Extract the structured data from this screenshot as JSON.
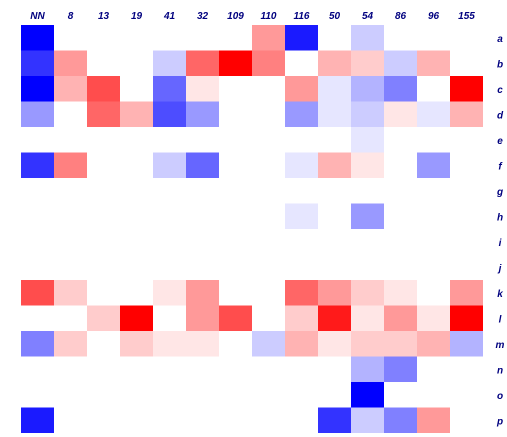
{
  "chart_data": {
    "type": "heatmap",
    "columns": [
      "NN",
      "8",
      "13",
      "19",
      "41",
      "32",
      "109",
      "110",
      "116",
      "50",
      "54",
      "86",
      "96",
      "155"
    ],
    "rows": [
      "a",
      "b",
      "c",
      "d",
      "e",
      "f",
      "g",
      "h",
      "i",
      "j",
      "k",
      "l",
      "m",
      "n",
      "o",
      "p"
    ],
    "values": [
      [
        -1,
        0,
        0,
        0,
        0,
        0,
        0,
        0.4,
        -0.9,
        0,
        -0.2,
        0,
        0,
        0
      ],
      [
        -0.8,
        0.4,
        0,
        0,
        -0.2,
        0.6,
        1,
        0.5,
        0,
        0.3,
        0.2,
        -0.2,
        0.3,
        0
      ],
      [
        -1,
        0.3,
        0.7,
        0,
        -0.6,
        0.1,
        0,
        0,
        0.4,
        -0.1,
        -0.3,
        -0.5,
        0,
        1
      ],
      [
        -0.4,
        0,
        0.6,
        0.3,
        -0.7,
        -0.4,
        0,
        0,
        -0.4,
        -0.1,
        -0.2,
        0.1,
        -0.1,
        0.3
      ],
      [
        0,
        0,
        0,
        0,
        0,
        0,
        0,
        0,
        0,
        0,
        -0.1,
        0,
        0,
        0
      ],
      [
        -0.8,
        0.5,
        0,
        0,
        -0.2,
        -0.6,
        0,
        0,
        -0.1,
        0.3,
        0.1,
        0,
        -0.4,
        0
      ],
      [
        0,
        0,
        0,
        0,
        0,
        0,
        0,
        0,
        0,
        0,
        0,
        0,
        0,
        0
      ],
      [
        0,
        0,
        0,
        0,
        0,
        0,
        0,
        0,
        -0.1,
        0,
        -0.4,
        0,
        0,
        0
      ],
      [
        0,
        0,
        0,
        0,
        0,
        0,
        0,
        0,
        0,
        0,
        0,
        0,
        0,
        0
      ],
      [
        0,
        0,
        0,
        0,
        0,
        0,
        0,
        0,
        0,
        0,
        0,
        0,
        0,
        0
      ],
      [
        0.7,
        0.2,
        0,
        0,
        0.1,
        0.4,
        0,
        0,
        0.6,
        0.4,
        0.2,
        0.1,
        0,
        0.4
      ],
      [
        0,
        0,
        0.2,
        1,
        0,
        0.4,
        0.7,
        0,
        0.2,
        0.9,
        0.1,
        0.4,
        0.1,
        1
      ],
      [
        -0.5,
        0.2,
        0,
        0.2,
        0.1,
        0.1,
        0,
        -0.2,
        0.3,
        0.1,
        0.2,
        0.2,
        0.3,
        -0.3
      ],
      [
        0,
        0,
        0,
        0,
        0,
        0,
        0,
        0,
        0,
        0,
        -0.3,
        -0.5,
        0,
        0
      ],
      [
        0,
        0,
        0,
        0,
        0,
        0,
        0,
        0,
        0,
        0,
        -1,
        0,
        0,
        0
      ],
      [
        -0.9,
        0,
        0,
        0,
        0,
        0,
        0,
        0,
        0,
        -0.8,
        -0.2,
        -0.5,
        0.4,
        0
      ]
    ],
    "value_range": [
      -1,
      1
    ],
    "colors": {
      "negative": "#0000ff",
      "neutral": "#ffffff",
      "positive": "#ff0000",
      "tick_label": "#00007f"
    },
    "grid": false,
    "legend": "none"
  }
}
